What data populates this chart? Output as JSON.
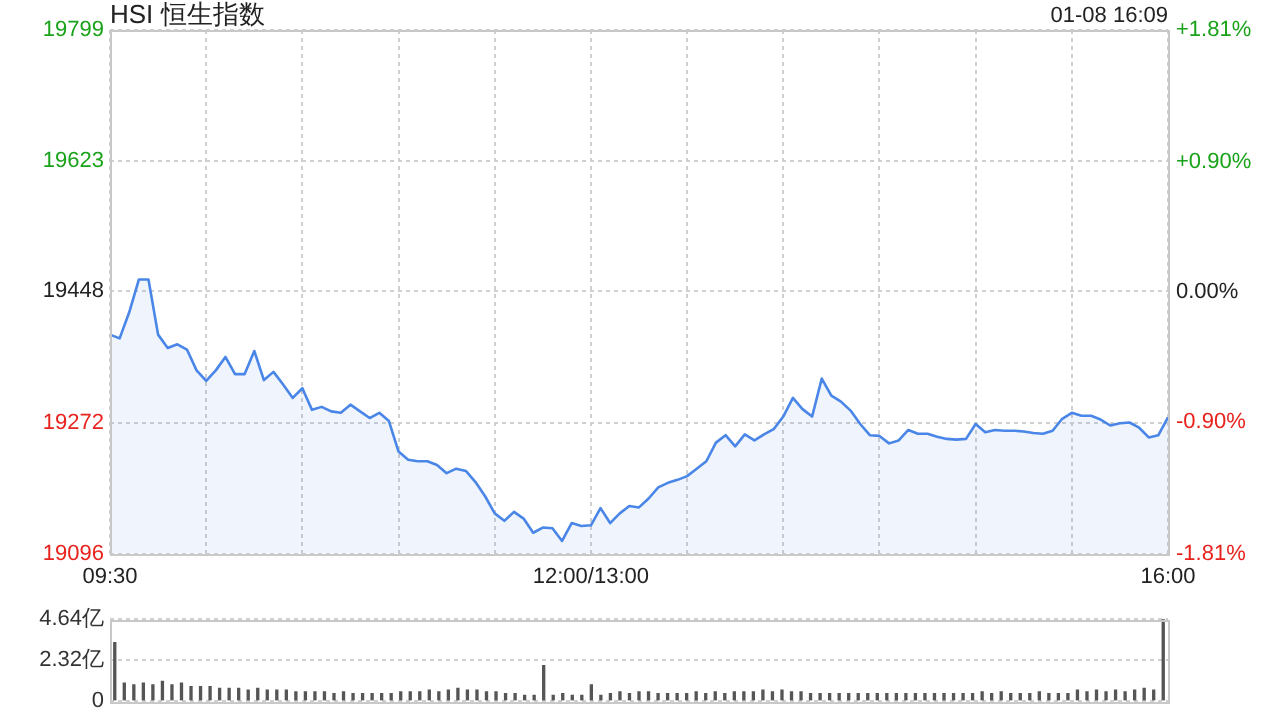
{
  "chart_data": [
    {
      "type": "area",
      "title": "HSI 恒生指数",
      "annotations": [
        "01-08 16:09"
      ],
      "color": "#4a86e8",
      "categories": [
        "09:30",
        null,
        null,
        null,
        null,
        null,
        null,
        null,
        null,
        null,
        null,
        null,
        null,
        null,
        null,
        null,
        null,
        null,
        null,
        null,
        null,
        null,
        null,
        null,
        null,
        null,
        null,
        null,
        null,
        null,
        null,
        null,
        null,
        null,
        null,
        null,
        null,
        null,
        null,
        null,
        null,
        null,
        null,
        null,
        null,
        null,
        null,
        null,
        null,
        null,
        "12:00/13:00",
        null,
        null,
        null,
        null,
        null,
        null,
        null,
        null,
        null,
        null,
        null,
        null,
        null,
        null,
        null,
        null,
        null,
        null,
        null,
        null,
        null,
        null,
        null,
        null,
        null,
        null,
        null,
        null,
        null,
        null,
        null,
        null,
        null,
        null,
        null,
        null,
        null,
        null,
        null,
        null,
        null,
        null,
        null,
        null,
        null,
        null,
        null,
        null,
        null,
        null,
        null,
        null,
        null,
        null,
        null,
        null,
        null,
        null,
        null,
        "16:00"
      ],
      "values": [
        19390,
        19385,
        19420,
        19464,
        19464,
        19390,
        19372,
        19377,
        19370,
        19342,
        19328,
        19342,
        19360,
        19337,
        19337,
        19368,
        19329,
        19340,
        19323,
        19305,
        19318,
        19289,
        19293,
        19287,
        19285,
        19296,
        19287,
        19278,
        19285,
        19274,
        19233,
        19222,
        19220,
        19220,
        19215,
        19204,
        19210,
        19207,
        19192,
        19173,
        19150,
        19140,
        19152,
        19143,
        19124,
        19131,
        19130,
        19113,
        19137,
        19133,
        19134,
        19157,
        19137,
        19150,
        19160,
        19158,
        19170,
        19185,
        19191,
        19195,
        19200,
        19210,
        19220,
        19245,
        19255,
        19240,
        19256,
        19248,
        19256,
        19263,
        19280,
        19305,
        19290,
        19280,
        19331,
        19308,
        19300,
        19288,
        19270,
        19255,
        19254,
        19244,
        19248,
        19262,
        19257,
        19257,
        19253,
        19250,
        19249,
        19250,
        19270,
        19259,
        19262,
        19261,
        19261,
        19260,
        19258,
        19257,
        19261,
        19277,
        19285,
        19281,
        19281,
        19276,
        19268,
        19271,
        19272,
        19265,
        19252,
        19255,
        19279
      ],
      "ylim": [
        19096,
        19799
      ],
      "yticks": [
        19096,
        19272,
        19448,
        19623,
        19799
      ],
      "y2lim": [
        -1.81,
        1.81
      ],
      "y2ticks": [
        {
          "value": -1.81,
          "label": "-1.81%"
        },
        {
          "value": -0.9,
          "label": "-0.90%"
        },
        {
          "value": 0,
          "label": "0.00%"
        },
        {
          "value": 0.9,
          "label": "+0.90%"
        },
        {
          "value": 1.81,
          "label": "+1.81%"
        }
      ],
      "grid": true
    },
    {
      "type": "bar",
      "color": "#555555",
      "categories": [
        null,
        null,
        null,
        null,
        null,
        null,
        null,
        null,
        null,
        null,
        null,
        null,
        null,
        null,
        null,
        null,
        null,
        null,
        null,
        null,
        null,
        null,
        null,
        null,
        null,
        null,
        null,
        null,
        null,
        null,
        null,
        null,
        null,
        null,
        null,
        null,
        null,
        null,
        null,
        null,
        null,
        null,
        null,
        null,
        null,
        null,
        null,
        null,
        null,
        null,
        null,
        null,
        null,
        null,
        null,
        null,
        null,
        null,
        null,
        null,
        null,
        null,
        null,
        null,
        null,
        null,
        null,
        null,
        null,
        null,
        null,
        null,
        null,
        null,
        null,
        null,
        null,
        null,
        null,
        null,
        null,
        null,
        null,
        null,
        null,
        null,
        null,
        null,
        null,
        null,
        null,
        null,
        null,
        null,
        null,
        null,
        null,
        null,
        null,
        null,
        null,
        null,
        null,
        null,
        null,
        null,
        null,
        null,
        null,
        null,
        null
      ],
      "values": [
        3.3,
        1.0,
        0.9,
        1.0,
        0.9,
        1.1,
        0.9,
        1.0,
        0.8,
        0.8,
        0.8,
        0.7,
        0.7,
        0.7,
        0.6,
        0.7,
        0.6,
        0.6,
        0.6,
        0.5,
        0.5,
        0.5,
        0.5,
        0.4,
        0.5,
        0.4,
        0.4,
        0.4,
        0.4,
        0.4,
        0.5,
        0.5,
        0.5,
        0.6,
        0.5,
        0.6,
        0.7,
        0.6,
        0.6,
        0.5,
        0.5,
        0.4,
        0.4,
        0.3,
        0.3,
        2.0,
        0.3,
        0.4,
        0.3,
        0.3,
        0.9,
        0.3,
        0.4,
        0.5,
        0.4,
        0.5,
        0.5,
        0.4,
        0.4,
        0.4,
        0.4,
        0.5,
        0.4,
        0.5,
        0.4,
        0.5,
        0.5,
        0.5,
        0.6,
        0.5,
        0.6,
        0.5,
        0.5,
        0.4,
        0.4,
        0.4,
        0.4,
        0.4,
        0.4,
        0.4,
        0.4,
        0.4,
        0.4,
        0.4,
        0.4,
        0.4,
        0.4,
        0.4,
        0.4,
        0.4,
        0.4,
        0.5,
        0.4,
        0.5,
        0.4,
        0.4,
        0.4,
        0.5,
        0.4,
        0.4,
        0.4,
        0.6,
        0.5,
        0.6,
        0.5,
        0.6,
        0.5,
        0.6,
        0.7,
        0.6,
        4.64
      ],
      "ylim": [
        0,
        4.64
      ],
      "yticks": [
        0,
        {
          "value": 2.32,
          "label": "2.32亿"
        },
        {
          "value": 4.64,
          "label": "4.64亿"
        }
      ],
      "grid": "y",
      "tick_labels": "y"
    }
  ]
}
